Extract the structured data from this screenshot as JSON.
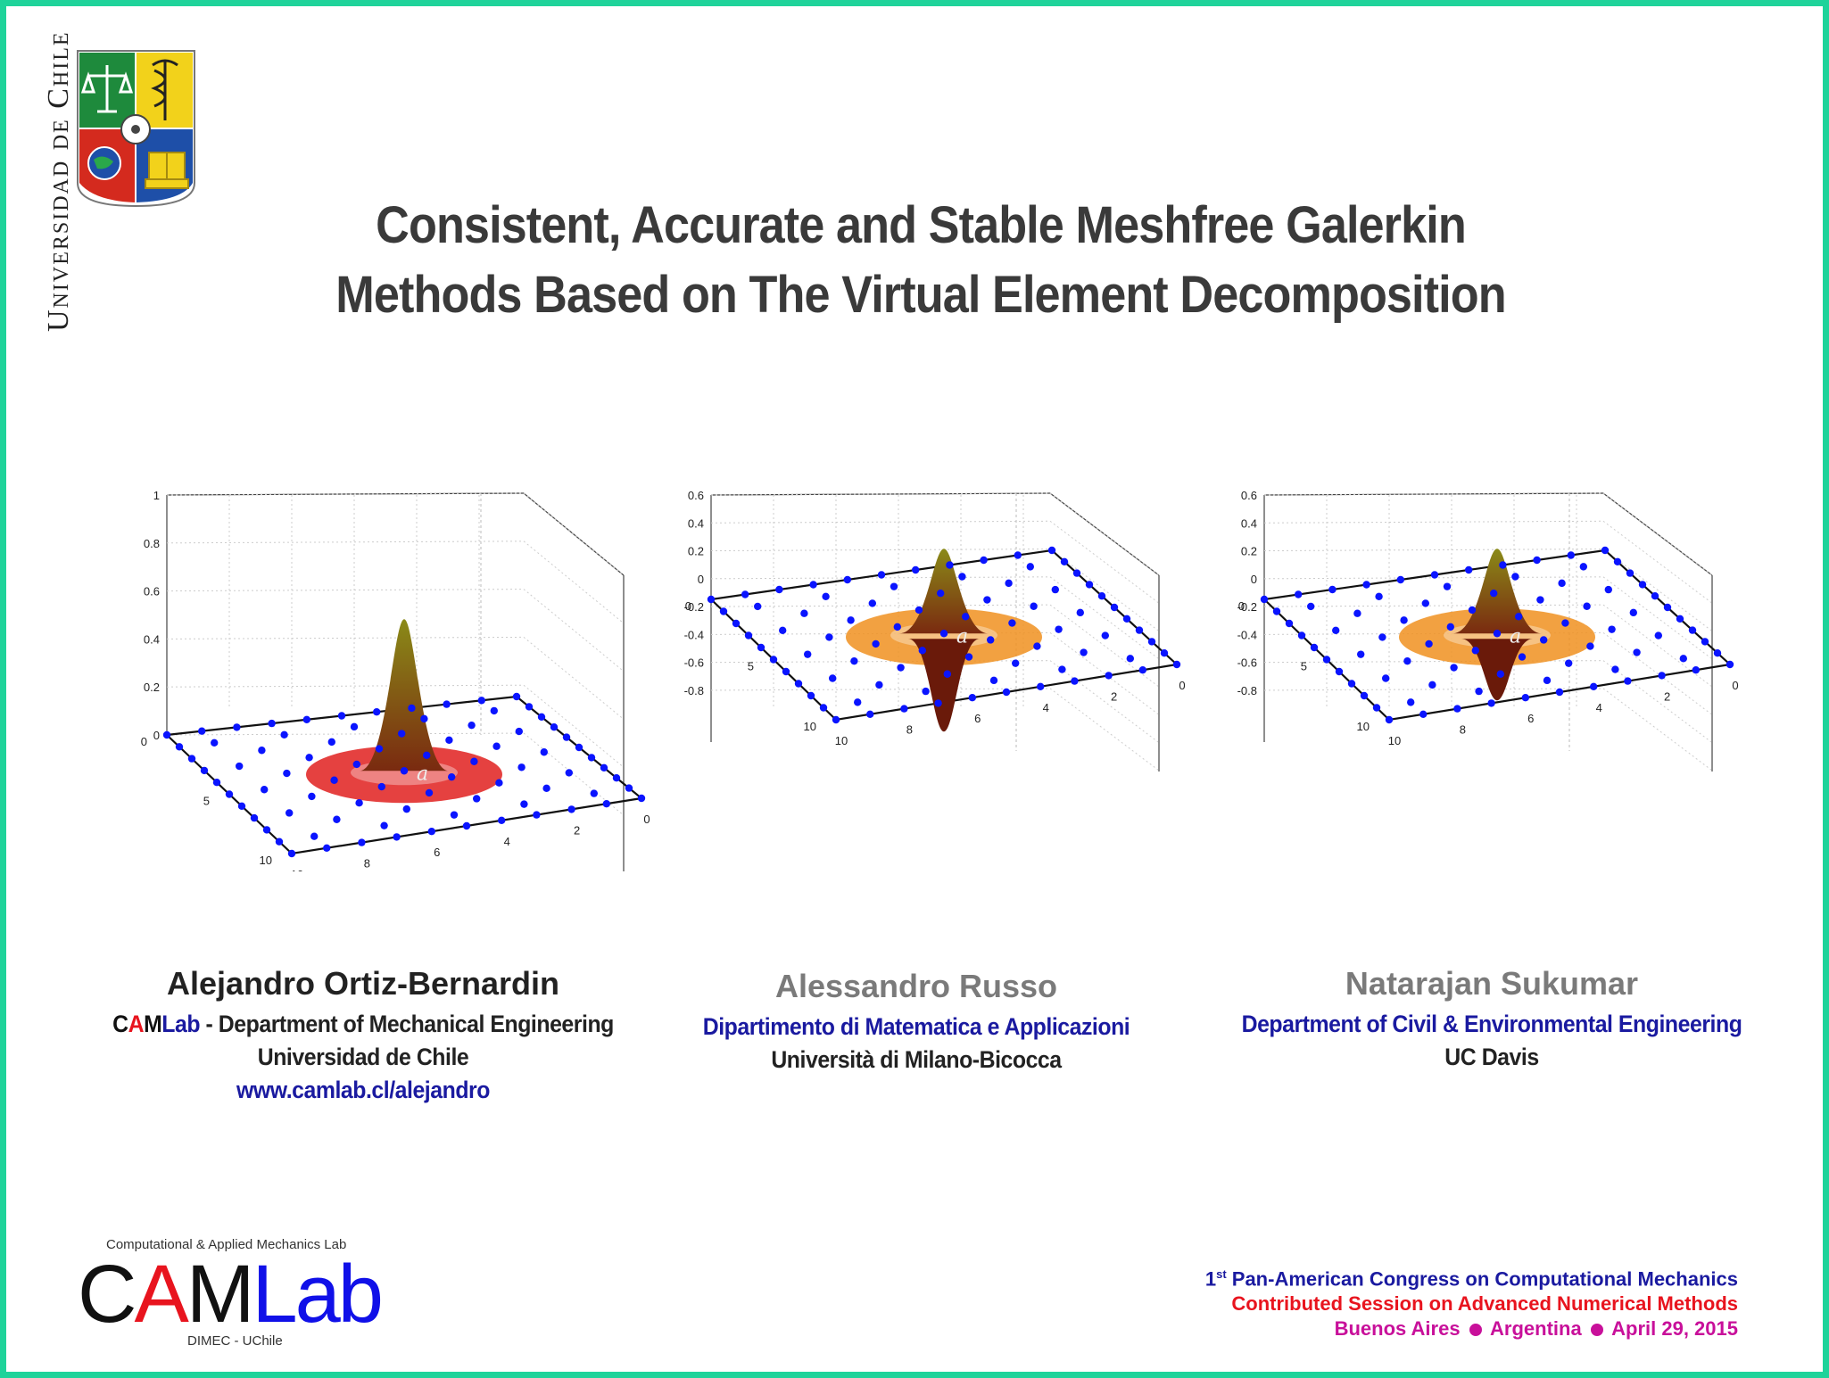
{
  "university_vertical": "Universidad de Chile",
  "title": {
    "line1": "Consistent, Accurate and Stable Meshfree Galerkin",
    "line2": "Methods Based on The Virtual Element Decomposition"
  },
  "figures": [
    {
      "z_ticks": [
        "1",
        "0.8",
        "0.6",
        "0.4",
        "0.2",
        "0"
      ],
      "y_ticks": [
        "0",
        "5",
        "10"
      ],
      "x_ticks": [
        "10",
        "8",
        "6",
        "4",
        "2",
        "0"
      ],
      "node_label": "a",
      "ring_color": "#e0201e"
    },
    {
      "z_ticks": [
        "0.6",
        "0.4",
        "0.2",
        "0",
        "-0.2",
        "-0.4",
        "-0.6",
        "-0.8"
      ],
      "y_ticks": [
        "0",
        "5",
        "10"
      ],
      "x_ticks": [
        "10",
        "8",
        "6",
        "4",
        "2",
        "0"
      ],
      "node_label": "a",
      "ring_color": "#f09020"
    },
    {
      "z_ticks": [
        "0.6",
        "0.4",
        "0.2",
        "0",
        "-0.2",
        "-0.4",
        "-0.6",
        "-0.8"
      ],
      "y_ticks": [
        "0",
        "5",
        "10"
      ],
      "x_ticks": [
        "10",
        "8",
        "6",
        "4",
        "2",
        "0"
      ],
      "node_label": "a",
      "ring_color": "#f09020"
    }
  ],
  "authors": [
    {
      "name": "Alejandro Ortiz-Bernardin",
      "lab_c": "C",
      "lab_a": "A",
      "lab_m": "M",
      "lab_lab": "Lab",
      "dept": " -  Department of Mechanical Engineering",
      "affiliation": "Universidad de Chile",
      "url": "www.camlab.cl/alejandro"
    },
    {
      "name": "Alessandro Russo",
      "dept": "Dipartimento di Matematica e Applicazioni",
      "affiliation": "Università di Milano-Bicocca"
    },
    {
      "name": "Natarajan Sukumar",
      "dept": "Department of Civil & Environmental Engineering",
      "affiliation": "UC Davis"
    }
  ],
  "camlab_logo": {
    "top": "Computational & Applied Mechanics Lab",
    "c": "C",
    "a": "A",
    "m": "M",
    "lab": "Lab",
    "bottom": "DIMEC - UChile"
  },
  "conference": {
    "sup": "st",
    "num": "1",
    "line1": " Pan-American Congress on Computational Mechanics",
    "line2": "Contributed Session on Advanced Numerical Methods",
    "loc1": "Buenos Aires",
    "loc2": "Argentina",
    "loc3": "April 29, 2015"
  },
  "colors": {
    "border": "#1fd39a",
    "author_blue": "#1a1aa0",
    "conf_blue": "#1a1aa0",
    "conf_red": "#e8141e",
    "conf_magenta": "#c8109a",
    "node_blue": "#0a14ff"
  }
}
